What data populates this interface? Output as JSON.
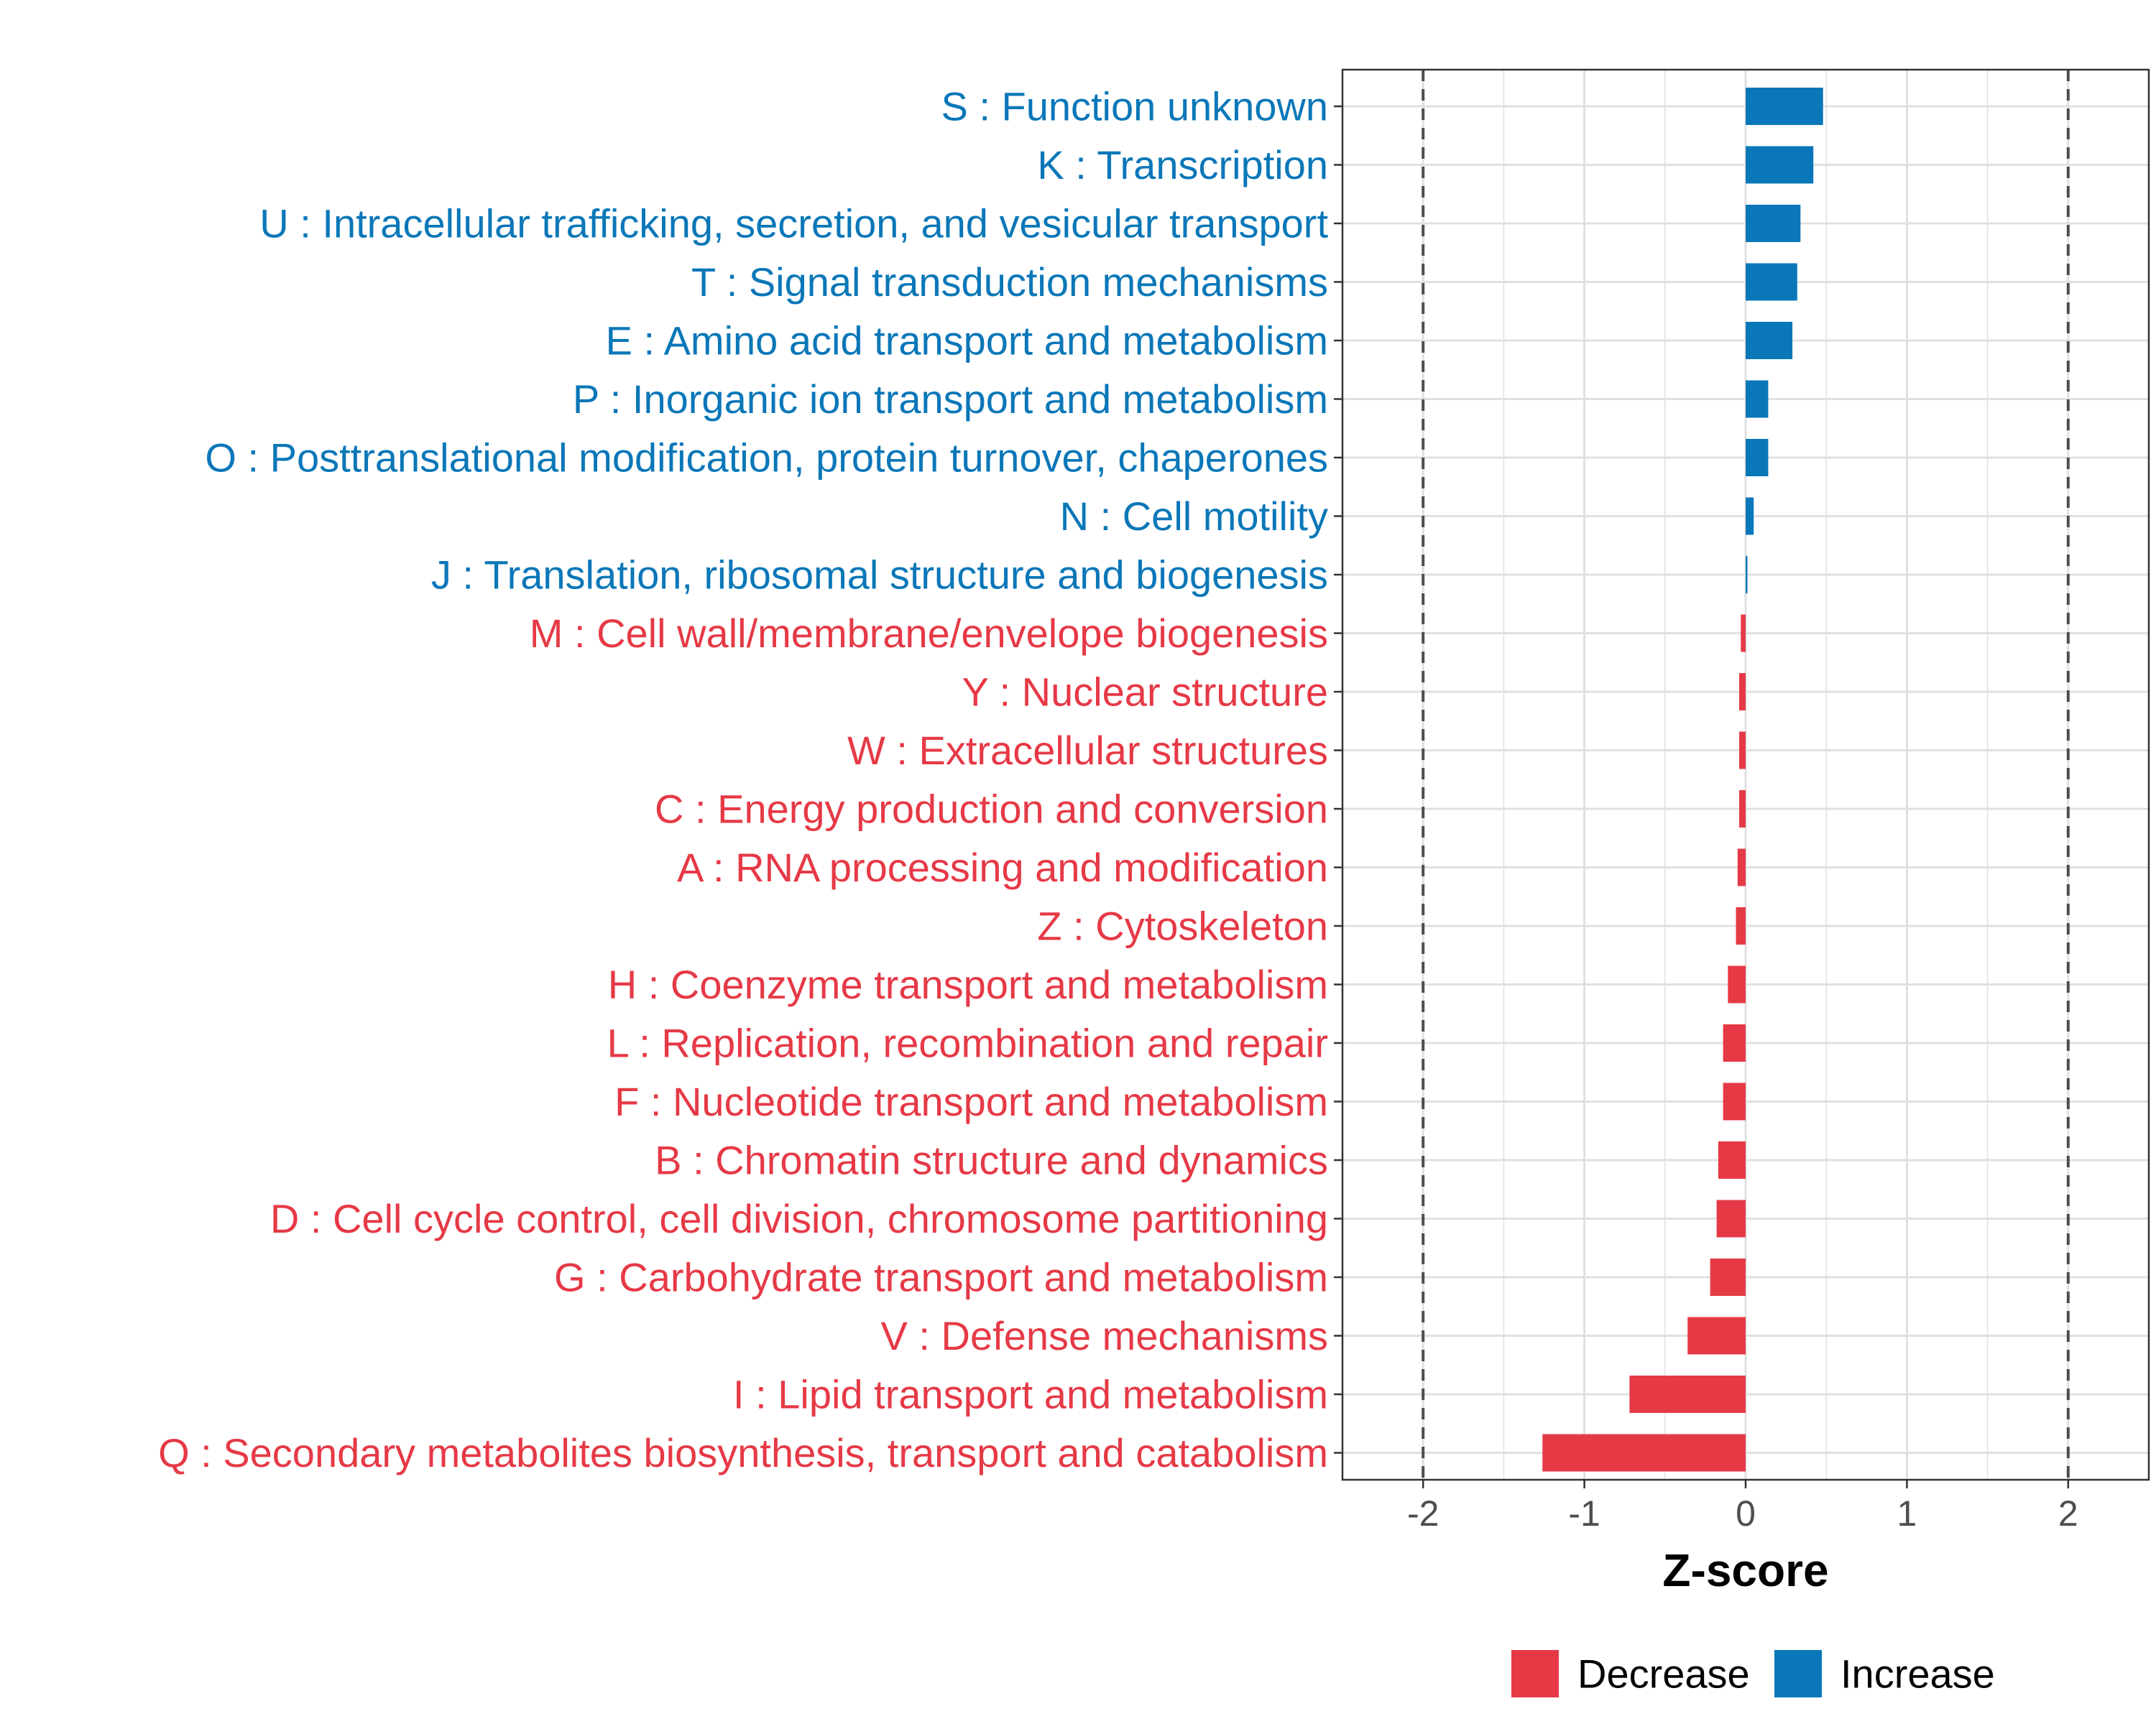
{
  "chart_data": {
    "type": "bar",
    "orientation": "horizontal",
    "title": "",
    "xlabel": "Z-score",
    "ylabel": "",
    "xlim": [
      -2.5,
      2.5
    ],
    "xticks": [
      -2,
      -1,
      0,
      1,
      2
    ],
    "xtick_labels": [
      "-2",
      "-1",
      "0",
      "1",
      "2"
    ],
    "grid": true,
    "threshold_lines": [
      -2,
      2
    ],
    "legend_position": "bottom",
    "colors": {
      "Decrease": "#e63946",
      "Increase": "#0a77b8"
    },
    "legend": [
      {
        "name": "Decrease",
        "color": "#e63946"
      },
      {
        "name": "Increase",
        "color": "#0a77b8"
      }
    ],
    "categories": [
      {
        "label": "S : Function unknown",
        "value": 0.48,
        "group": "Increase"
      },
      {
        "label": "K : Transcription",
        "value": 0.42,
        "group": "Increase"
      },
      {
        "label": "U : Intracellular trafficking, secretion, and vesicular transport",
        "value": 0.34,
        "group": "Increase"
      },
      {
        "label": "T : Signal transduction mechanisms",
        "value": 0.32,
        "group": "Increase"
      },
      {
        "label": "E : Amino acid transport and metabolism",
        "value": 0.29,
        "group": "Increase"
      },
      {
        "label": "P : Inorganic ion transport and metabolism",
        "value": 0.14,
        "group": "Increase"
      },
      {
        "label": "O : Posttranslational modification, protein turnover, chaperones",
        "value": 0.14,
        "group": "Increase"
      },
      {
        "label": "N : Cell motility",
        "value": 0.05,
        "group": "Increase"
      },
      {
        "label": "J : Translation, ribosomal structure and biogenesis",
        "value": 0.01,
        "group": "Increase"
      },
      {
        "label": "M : Cell wall/membrane/envelope biogenesis",
        "value": -0.03,
        "group": "Decrease"
      },
      {
        "label": "Y : Nuclear structure",
        "value": -0.04,
        "group": "Decrease"
      },
      {
        "label": "W : Extracellular structures",
        "value": -0.04,
        "group": "Decrease"
      },
      {
        "label": "C : Energy production and conversion",
        "value": -0.04,
        "group": "Decrease"
      },
      {
        "label": "A : RNA processing and modification",
        "value": -0.05,
        "group": "Decrease"
      },
      {
        "label": "Z : Cytoskeleton",
        "value": -0.06,
        "group": "Decrease"
      },
      {
        "label": "H : Coenzyme transport and metabolism",
        "value": -0.11,
        "group": "Decrease"
      },
      {
        "label": "L : Replication, recombination and repair",
        "value": -0.14,
        "group": "Decrease"
      },
      {
        "label": "F : Nucleotide transport and metabolism",
        "value": -0.14,
        "group": "Decrease"
      },
      {
        "label": "B : Chromatin structure and dynamics",
        "value": -0.17,
        "group": "Decrease"
      },
      {
        "label": "D : Cell cycle control, cell division, chromosome partitioning",
        "value": -0.18,
        "group": "Decrease"
      },
      {
        "label": "G : Carbohydrate transport and metabolism",
        "value": -0.22,
        "group": "Decrease"
      },
      {
        "label": "V : Defense mechanisms",
        "value": -0.36,
        "group": "Decrease"
      },
      {
        "label": "I : Lipid transport and metabolism",
        "value": -0.72,
        "group": "Decrease"
      },
      {
        "label": "Q : Secondary metabolites biosynthesis, transport and catabolism",
        "value": -1.26,
        "group": "Decrease"
      }
    ]
  }
}
